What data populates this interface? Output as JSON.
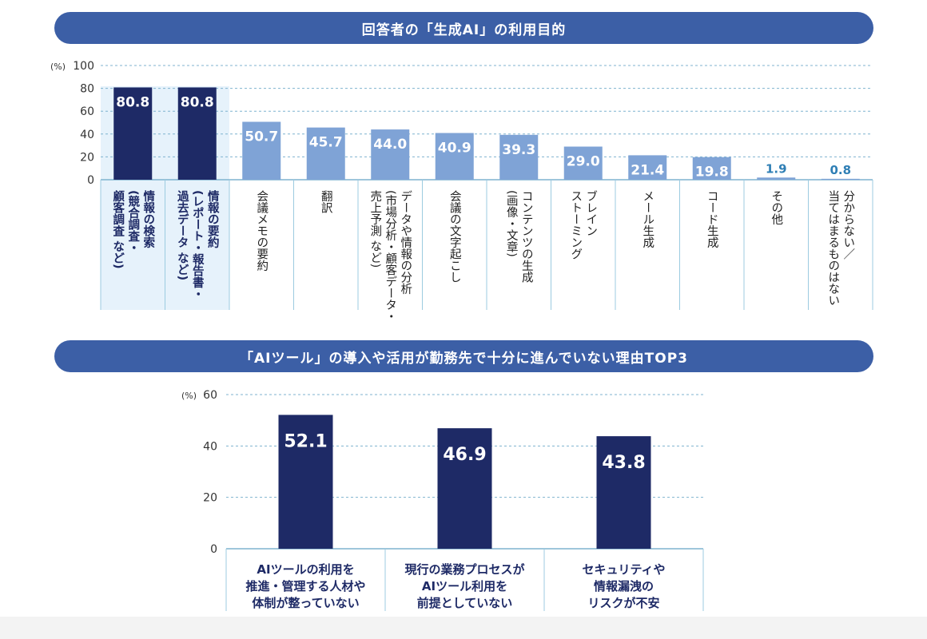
{
  "chart_data": [
    {
      "type": "bar",
      "title": "回答者の「生成AI」の利用目的",
      "yunit": "(%)",
      "ylim": [
        0,
        100
      ],
      "yticks": [
        0,
        20,
        40,
        60,
        80,
        100
      ],
      "grid": true,
      "categories": [
        [
          "情報の検索",
          "(競合調査・",
          "顧客調査 など)"
        ],
        [
          "情報の要約",
          "(レポート・報告書・",
          "過去データ など)"
        ],
        [
          "会議メモの要約"
        ],
        [
          "翻訳"
        ],
        [
          "データや情報の分析",
          "(市場分析・顧客データ・",
          "売上予測 など)"
        ],
        [
          "会議の文字起こし"
        ],
        [
          "コンテンツの生成",
          "(画像・文章)"
        ],
        [
          "ブレイン",
          "ストーミング"
        ],
        [
          "メール生成"
        ],
        [
          "コード生成"
        ],
        [
          "その他"
        ],
        [
          "分からない／",
          "当てはまるものはない"
        ]
      ],
      "values": [
        80.8,
        80.8,
        50.7,
        45.7,
        44.0,
        40.9,
        39.3,
        29.0,
        21.4,
        19.8,
        1.9,
        0.8
      ],
      "value_labels": [
        "80.8",
        "80.8",
        "50.7",
        "45.7",
        "44.0",
        "40.9",
        "39.3",
        "29.0",
        "21.4",
        "19.8",
        "1.9",
        "0.8"
      ],
      "highlighted": [
        0,
        1
      ],
      "colors": {
        "highlight": "#1e2a66",
        "normal": "#7fa3d6",
        "small_label": "#2f7fb5",
        "highlight_bg": "#e6f2fb"
      }
    },
    {
      "type": "bar",
      "title": "「AIツール」の導入や活用が勤務先で十分に進んでいない理由TOP3",
      "yunit": "(%)",
      "ylim": [
        0,
        60
      ],
      "yticks": [
        0,
        20,
        40,
        60
      ],
      "grid": true,
      "categories": [
        [
          "AIツールの利用を",
          "推進・管理する人材や",
          "体制が整っていない"
        ],
        [
          "現行の業務プロセスが",
          "AIツール利用を",
          "前提としていない"
        ],
        [
          "セキュリティや",
          "情報漏洩の",
          "リスクが不安"
        ]
      ],
      "values": [
        52.1,
        46.9,
        43.8
      ],
      "value_labels": [
        "52.1",
        "46.9",
        "43.8"
      ],
      "colors": {
        "bar": "#1e2a66"
      }
    }
  ]
}
